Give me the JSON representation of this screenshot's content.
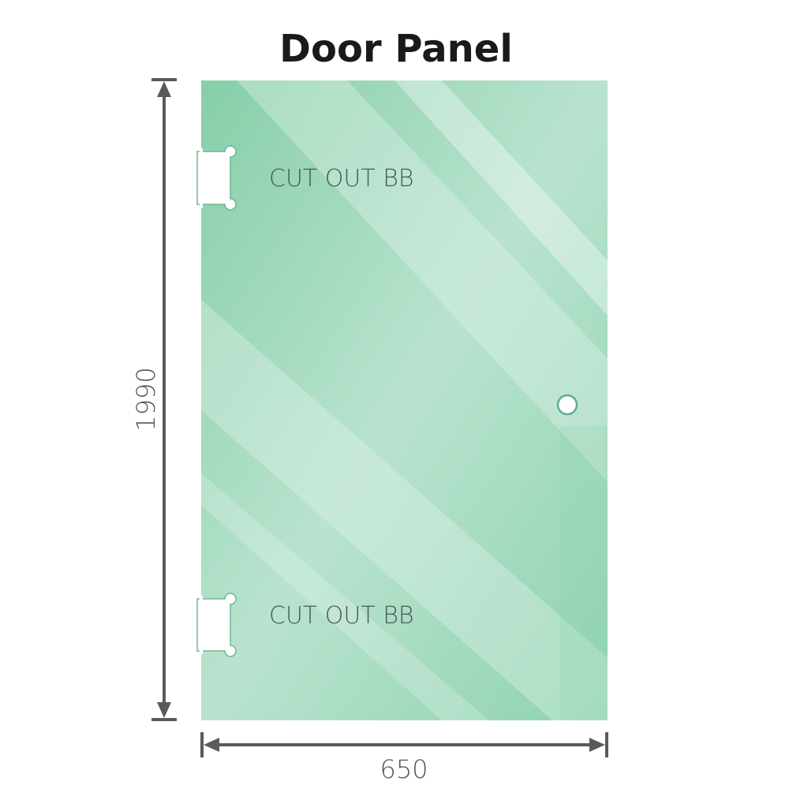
{
  "title": "Door Panel",
  "cutout_labels": [
    "CUT OUT BB",
    "CUT OUT BB"
  ],
  "dimensions": {
    "height": "1990",
    "width": "650"
  },
  "colors": {
    "glass": "#8fd1b0",
    "glass_light": "#bfe6d3",
    "dimension_line": "#5a5a5a"
  }
}
